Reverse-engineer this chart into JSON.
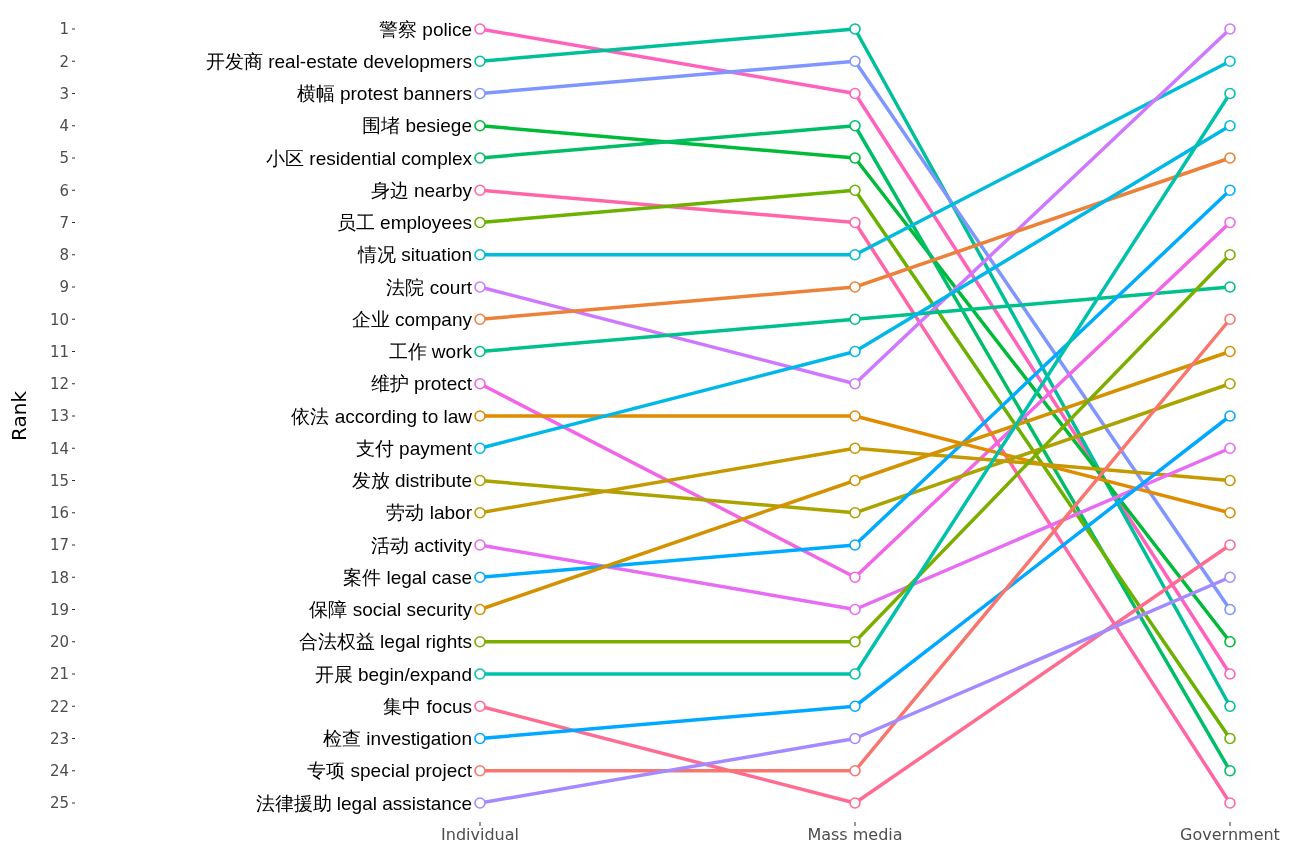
{
  "chart_data": {
    "type": "line",
    "ylabel": "Rank",
    "categories": [
      "Individual",
      "Mass media",
      "Government"
    ],
    "ylim": [
      25,
      1
    ],
    "yticks": [
      1,
      2,
      3,
      4,
      5,
      6,
      7,
      8,
      9,
      10,
      11,
      12,
      13,
      14,
      15,
      16,
      17,
      18,
      19,
      20,
      21,
      22,
      23,
      24,
      25
    ],
    "grid": false,
    "legend": false,
    "marker": "circle",
    "line_style": "solid",
    "series": [
      {
        "name": "警察 police",
        "color": "#ff62bc",
        "values": [
          1,
          3,
          21
        ]
      },
      {
        "name": "开发商 real-estate developmers",
        "color": "#00bf99",
        "values": [
          2,
          1,
          22
        ]
      },
      {
        "name": "横幅 protest banners",
        "color": "#7f96ff",
        "values": [
          3,
          2,
          19
        ]
      },
      {
        "name": "围堵 besiege",
        "color": "#00ba38",
        "values": [
          4,
          5,
          20
        ]
      },
      {
        "name": "小区 residential complex",
        "color": "#00be67",
        "values": [
          5,
          4,
          24
        ]
      },
      {
        "name": "身边 nearby",
        "color": "#ff66a8",
        "values": [
          6,
          7,
          25
        ]
      },
      {
        "name": "员工 employees",
        "color": "#6bb100",
        "values": [
          7,
          6,
          23
        ]
      },
      {
        "name": "情况 situation",
        "color": "#00bcd8",
        "values": [
          8,
          8,
          2
        ]
      },
      {
        "name": "法院 court",
        "color": "#cf78ff",
        "values": [
          9,
          12,
          1
        ]
      },
      {
        "name": "企业 company",
        "color": "#ec8239",
        "values": [
          10,
          9,
          5
        ]
      },
      {
        "name": "工作 work",
        "color": "#00c08b",
        "values": [
          11,
          10,
          9
        ]
      },
      {
        "name": "维护 protect",
        "color": "#f265e7",
        "values": [
          12,
          18,
          7
        ]
      },
      {
        "name": "依法 according to law",
        "color": "#e08b00",
        "values": [
          13,
          13,
          16
        ]
      },
      {
        "name": "支付 payment",
        "color": "#00b8e7",
        "values": [
          14,
          11,
          4
        ]
      },
      {
        "name": "发放 distribute",
        "color": "#aba300",
        "values": [
          15,
          16,
          12
        ]
      },
      {
        "name": "劳动 labor",
        "color": "#c49a00",
        "values": [
          16,
          14,
          15
        ]
      },
      {
        "name": "活动 activity",
        "color": "#e76bf3",
        "values": [
          17,
          19,
          14
        ]
      },
      {
        "name": "案件 legal case",
        "color": "#00abfd",
        "values": [
          18,
          17,
          6
        ]
      },
      {
        "name": "保障 social security",
        "color": "#d39200",
        "values": [
          19,
          15,
          11
        ]
      },
      {
        "name": "合法权益 legal rights",
        "color": "#7cae00",
        "values": [
          20,
          20,
          8
        ]
      },
      {
        "name": "开展 begin/expand",
        "color": "#00c1aa",
        "values": [
          21,
          21,
          3
        ]
      },
      {
        "name": "集中 focus",
        "color": "#ff6c91",
        "values": [
          22,
          25,
          17
        ]
      },
      {
        "name": "检查 investigation",
        "color": "#00a9ff",
        "values": [
          23,
          22,
          13
        ]
      },
      {
        "name": "专项 special project",
        "color": "#f8766d",
        "values": [
          24,
          24,
          10
        ]
      },
      {
        "name": "法律援助 legal assistance",
        "color": "#a58aff",
        "values": [
          25,
          23,
          18
        ]
      }
    ]
  }
}
